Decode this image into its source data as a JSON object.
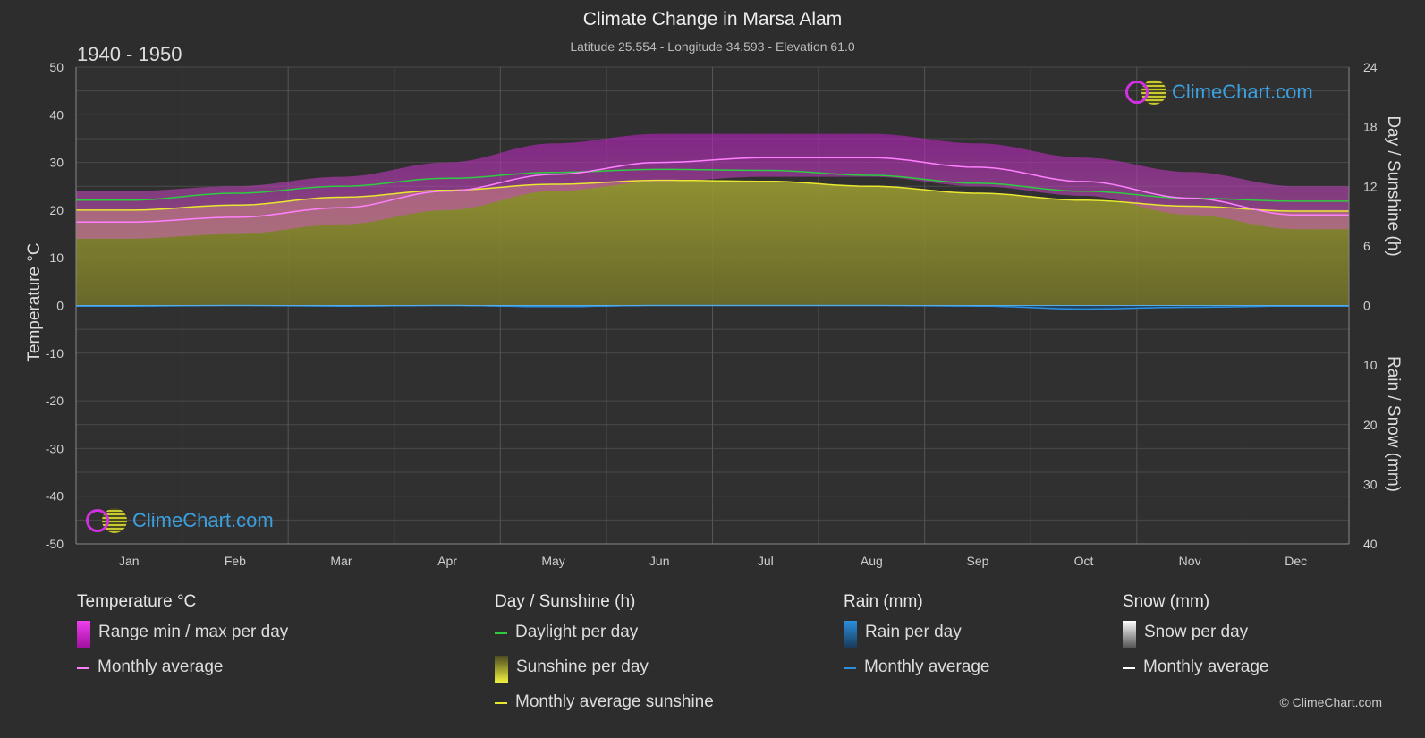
{
  "header": {
    "title": "Climate Change in Marsa Alam",
    "subtitle": "Latitude 25.554 - Longitude 34.593 - Elevation 61.0",
    "period": "1940 - 1950"
  },
  "chart_data": {
    "type": "area",
    "months": [
      "Jan",
      "Feb",
      "Mar",
      "Apr",
      "May",
      "Jun",
      "Jul",
      "Aug",
      "Sep",
      "Oct",
      "Nov",
      "Dec"
    ],
    "left_axis": {
      "label": "Temperature °C",
      "range": [
        -50,
        50
      ],
      "ticks": [
        "50",
        "40",
        "30",
        "20",
        "10",
        "0",
        "-10",
        "-20",
        "-30",
        "-40",
        "-50"
      ]
    },
    "right_axis_top": {
      "label": "Day / Sunshine (h)",
      "range": [
        0,
        24
      ],
      "ticks": [
        "24",
        "18",
        "12",
        "6",
        "0"
      ]
    },
    "right_axis_bottom": {
      "label": "Rain / Snow (mm)",
      "range": [
        0,
        40
      ],
      "ticks": [
        "0",
        "10",
        "20",
        "30",
        "40"
      ]
    },
    "grid": true,
    "series": [
      {
        "name": "Daylight per day",
        "unit": "h",
        "color": "#2ecc40",
        "values": [
          10.6,
          11.3,
          12.0,
          12.8,
          13.4,
          13.7,
          13.6,
          13.1,
          12.3,
          11.5,
          10.8,
          10.5
        ]
      },
      {
        "name": "Monthly average sunshine",
        "unit": "h",
        "color": "#e8e830",
        "values": [
          9.6,
          10.1,
          10.9,
          11.6,
          12.2,
          12.6,
          12.5,
          12.0,
          11.3,
          10.6,
          10.0,
          9.5
        ]
      },
      {
        "name": "Monthly average",
        "unit": "°C",
        "color": "#ff80ff",
        "values": [
          17.5,
          18.5,
          20.5,
          24.0,
          27.5,
          30.0,
          31.0,
          31.0,
          29.0,
          26.0,
          22.5,
          19.0
        ]
      },
      {
        "name": "Range max per day",
        "unit": "°C",
        "values": [
          24,
          25,
          27,
          30,
          34,
          36,
          36,
          36,
          34,
          31,
          28,
          25
        ]
      },
      {
        "name": "Range min per day",
        "unit": "°C",
        "values": [
          14,
          15,
          17,
          20,
          24,
          26,
          27,
          27,
          25,
          23,
          19,
          16
        ]
      },
      {
        "name": "Rain monthly average",
        "unit": "mm",
        "color": "#2a90e0",
        "values": [
          0.1,
          0.0,
          0.1,
          0.0,
          0.2,
          0.0,
          0.0,
          0.0,
          0.1,
          0.6,
          0.3,
          0.1
        ]
      }
    ]
  },
  "legend": {
    "temperature": {
      "title": "Temperature °C",
      "items": [
        "Range min / max per day",
        "Monthly average"
      ]
    },
    "sunshine": {
      "title": "Day / Sunshine (h)",
      "items": [
        "Daylight per day",
        "Sunshine per day",
        "Monthly average sunshine"
      ]
    },
    "rain": {
      "title": "Rain (mm)",
      "items": [
        "Rain per day",
        "Monthly average"
      ]
    },
    "snow": {
      "title": "Snow (mm)",
      "items": [
        "Snow per day",
        "Monthly average"
      ]
    }
  },
  "brand": {
    "logo_text": "ClimeChart.com",
    "copyright": "© ClimeChart.com"
  },
  "colors": {
    "background": "#2d2d2d",
    "temp_range": "#d020d0",
    "sunshine_fill": "#8a8a30",
    "daylight": "#2ecc40",
    "rain": "#2a90e0"
  }
}
